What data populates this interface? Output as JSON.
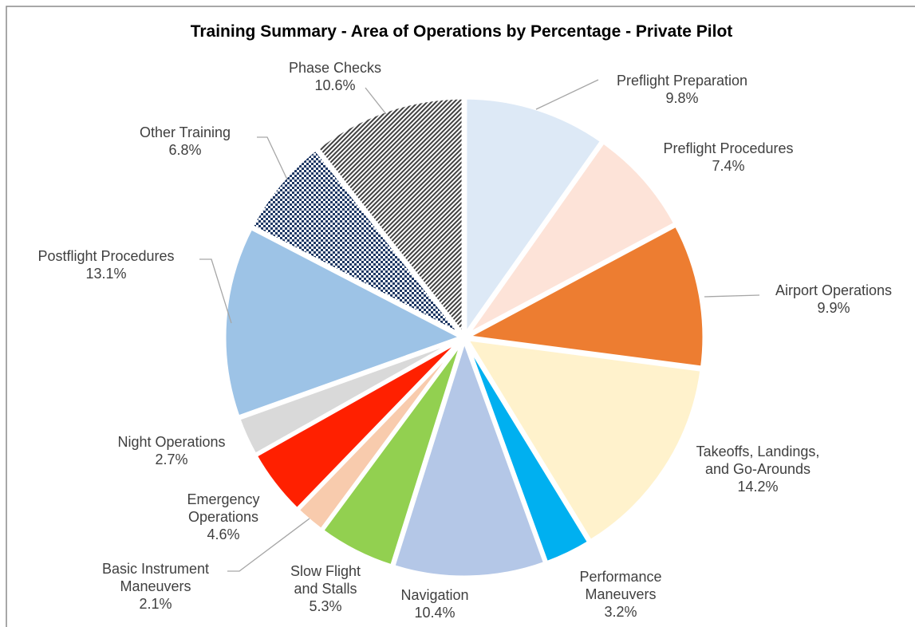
{
  "chart_data": {
    "type": "pie",
    "title": "Training Summary - Area of Operations by Percentage - Private Pilot",
    "categories": [
      "Preflight Preparation",
      "Preflight Procedures",
      "Airport Operations",
      "Takeoffs, Landings, and Go-Arounds",
      "Performance Maneuvers",
      "Navigation",
      "Slow Flight and Stalls",
      "Basic Instrument Maneuvers",
      "Emergency Operations",
      "Night Operations",
      "Postflight Procedures",
      "Other Training",
      "Phase Checks"
    ],
    "values": [
      9.8,
      7.4,
      9.9,
      14.2,
      3.2,
      10.4,
      5.3,
      2.1,
      4.6,
      2.7,
      13.1,
      6.8,
      10.6
    ],
    "value_labels": [
      "9.8%",
      "7.4%",
      "9.9%",
      "14.2%",
      "3.2%",
      "10.4%",
      "5.3%",
      "2.1%",
      "4.6%",
      "2.7%",
      "13.1%",
      "6.8%",
      "10.6%"
    ],
    "colors": [
      "#dde9f6",
      "#fde3d8",
      "#ed7d31",
      "#fff2cc",
      "#00b0f0",
      "#b4c7e7",
      "#92d050",
      "#f8cbad",
      "#ff2000",
      "#d9d9d9",
      "#9dc3e6",
      "#1f3864",
      "#404040"
    ],
    "hatches": [
      null,
      null,
      null,
      null,
      null,
      null,
      null,
      null,
      null,
      null,
      null,
      "checker",
      "diagonal"
    ]
  }
}
